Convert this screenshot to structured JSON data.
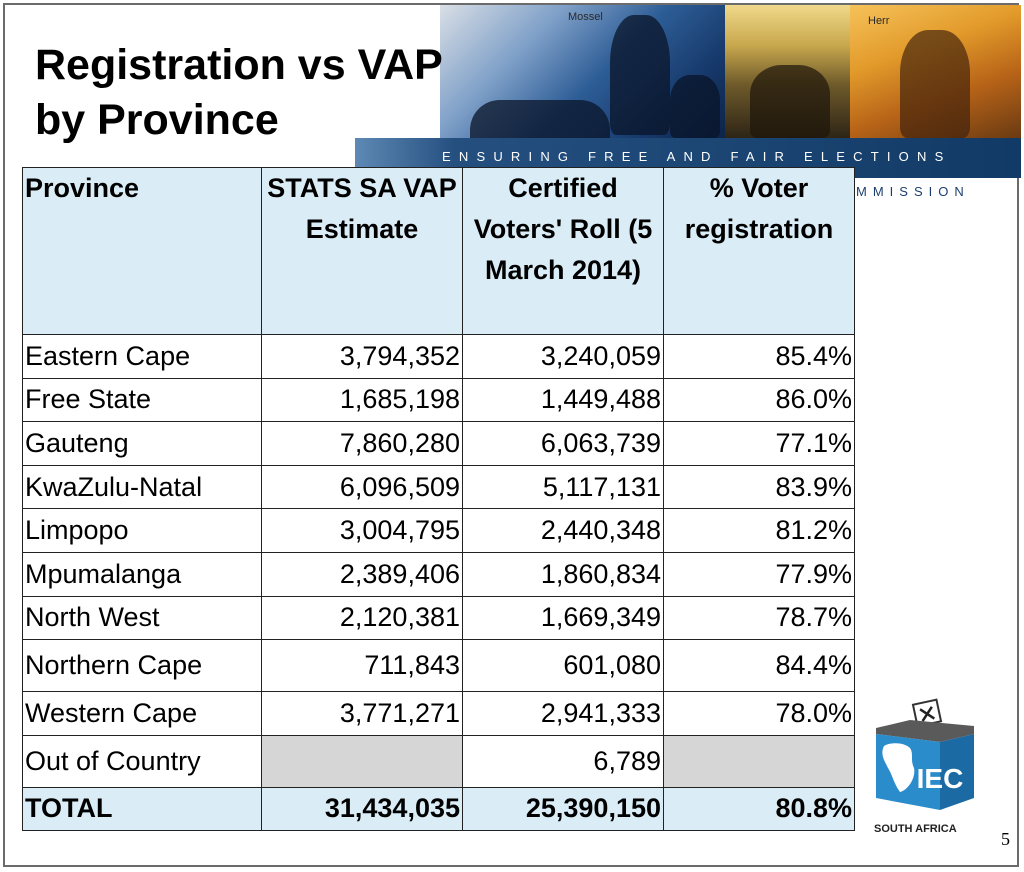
{
  "title": {
    "line1": "Registration vs VAP",
    "line2": "by Province"
  },
  "banner": {
    "tagline": "ENSURING FREE AND FAIR ELECTIONS",
    "commission_fragment": "MMISSION",
    "map_labels": [
      "Mossel",
      "Herr"
    ]
  },
  "table": {
    "headers": {
      "province": "Province",
      "vap": "STATS SA VAP Estimate",
      "roll": "Certified Voters' Roll (5 March 2014)",
      "pct": "% Voter registration"
    },
    "rows": [
      {
        "province": "Eastern Cape",
        "vap": "3,794,352",
        "roll": "3,240,059",
        "pct": "85.4%"
      },
      {
        "province": "Free State",
        "vap": "1,685,198",
        "roll": "1,449,488",
        "pct": "86.0%"
      },
      {
        "province": "Gauteng",
        "vap": "7,860,280",
        "roll": "6,063,739",
        "pct": "77.1%"
      },
      {
        "province": "KwaZulu-Natal",
        "vap": "6,096,509",
        "roll": "5,117,131",
        "pct": "83.9%"
      },
      {
        "province": "Limpopo",
        "vap": "3,004,795",
        "roll": "2,440,348",
        "pct": "81.2%"
      },
      {
        "province": "Mpumalanga",
        "vap": "2,389,406",
        "roll": "1,860,834",
        "pct": "77.9%"
      },
      {
        "province": "North West",
        "vap": "2,120,381",
        "roll": "1,669,349",
        "pct": "78.7%"
      },
      {
        "province": "Northern Cape",
        "vap": "711,843",
        "roll": "601,080",
        "pct": "84.4%"
      },
      {
        "province": "Western Cape",
        "vap": "3,771,271",
        "roll": "2,941,333",
        "pct": "78.0%"
      },
      {
        "province": "Out of Country",
        "vap": "",
        "roll": "6,789",
        "pct": ""
      }
    ],
    "total": {
      "province": "TOTAL",
      "vap": "31,434,035",
      "roll": "25,390,150",
      "pct": "80.8%"
    }
  },
  "logo": {
    "text": "IEC",
    "caption": "SOUTH AFRICA",
    "icon": "ballot-box-africa-icon"
  },
  "page_number": "5",
  "colors": {
    "header_fill": "#daedf6",
    "grey_cell": "#d6d6d6",
    "banner_blue": "#123a66",
    "logo_blue": "#2b8ccc"
  }
}
